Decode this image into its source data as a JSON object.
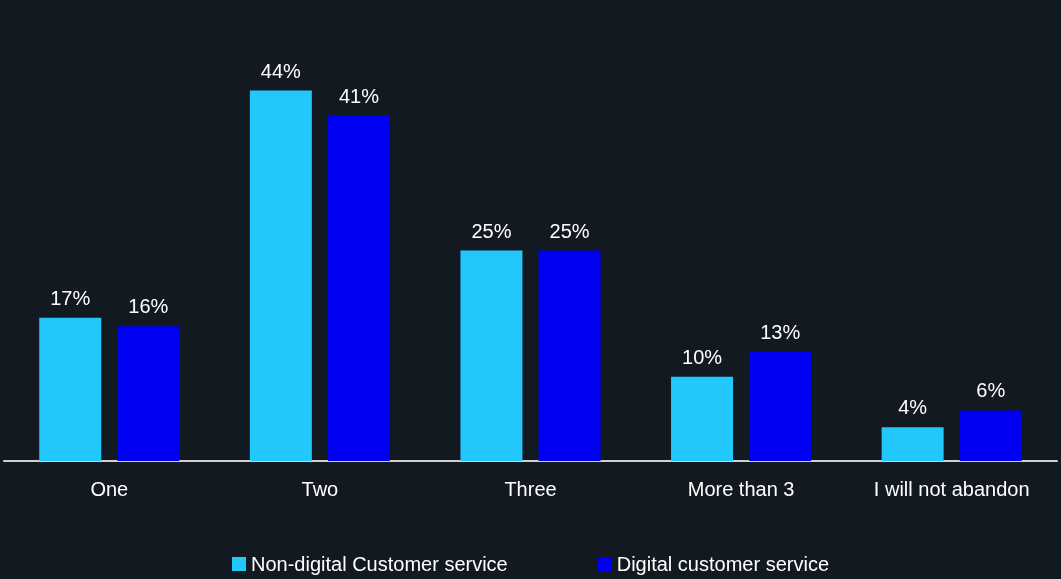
{
  "chart_data": {
    "type": "bar",
    "categories": [
      "One",
      "Two",
      "Three",
      "More than 3",
      "I will not abandon"
    ],
    "series": [
      {
        "name": "Non-digital Customer service",
        "color": "#22c8fc",
        "values": [
          17,
          44,
          25,
          10,
          4
        ],
        "value_labels": [
          "17%",
          "44%",
          "25%",
          "10%",
          "4%"
        ]
      },
      {
        "name": "Digital customer service",
        "color": "#0000f2",
        "values": [
          16,
          41,
          25,
          13,
          6
        ],
        "value_labels": [
          "16%",
          "41%",
          "25%",
          "13%",
          "6%"
        ]
      }
    ],
    "legend": "bottom"
  }
}
